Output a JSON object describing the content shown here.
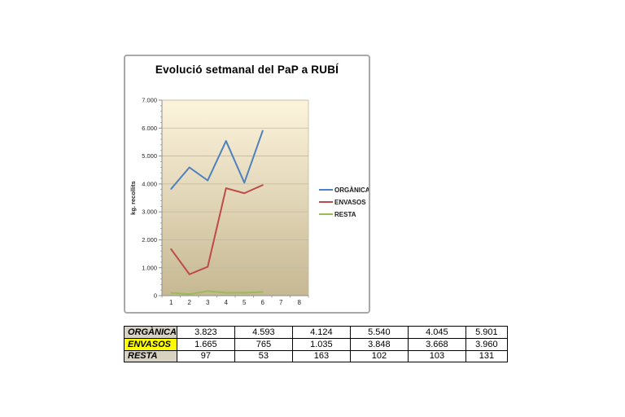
{
  "chart_data": {
    "type": "line",
    "title": "Evolució setmanal del PaP a RUBÍ",
    "categories": [
      "1",
      "2",
      "3",
      "4",
      "5",
      "6",
      "7",
      "8"
    ],
    "series": [
      {
        "name": "ORGÀNICA",
        "color": "#4F81BD",
        "values": [
          3823,
          4593,
          4124,
          5540,
          4045,
          5901
        ]
      },
      {
        "name": "ENVASOS",
        "color": "#BE4B48",
        "values": [
          1665,
          765,
          1035,
          3848,
          3668,
          3960
        ]
      },
      {
        "name": "RESTA",
        "color": "#9BBB59",
        "values": [
          97,
          53,
          163,
          102,
          103,
          131
        ]
      }
    ],
    "xlabel": "",
    "ylabel": "kg. recollits",
    "ylim": [
      0,
      7000
    ],
    "y_tick_step": 1000,
    "y_minor_tick_step": 200,
    "y_tick_labels": [
      "0",
      "1.000",
      "2.000",
      "3.000",
      "4.000",
      "5.000",
      "6.000",
      "7.000"
    ],
    "grid": true,
    "legend_position": "right"
  },
  "plot_style": {
    "bg_top": "#FDF4DD",
    "bg_bottom": "#C6B892",
    "grid_color": "#C2B9A2",
    "axis_color": "#8E8E8E",
    "frame_border": "#A9A9A9"
  },
  "table": {
    "rows": [
      {
        "label": "ORGÀNICA",
        "bg": "#D8D2C3",
        "values": [
          "3.823",
          "4.593",
          "4.124",
          "5.540",
          "4.045",
          "5.901"
        ]
      },
      {
        "label": "ENVASOS",
        "bg": "#FFFF00",
        "values": [
          "1.665",
          "765",
          "1.035",
          "3.848",
          "3.668",
          "3.960"
        ]
      },
      {
        "label": "RESTA",
        "bg": "#D8D2C3",
        "values": [
          "97",
          "53",
          "163",
          "102",
          "103",
          "131"
        ]
      }
    ]
  }
}
